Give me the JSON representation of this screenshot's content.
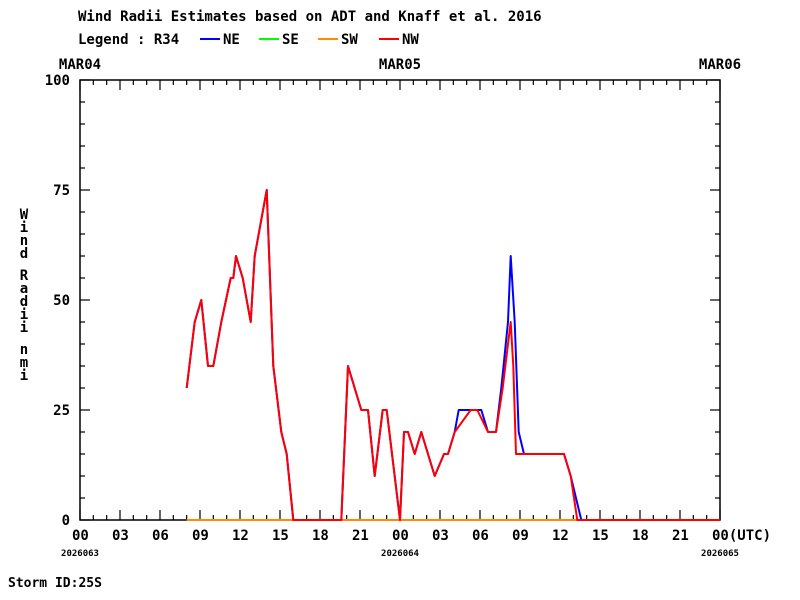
{
  "title": "Wind Radii Estimates based on ADT and Knaff et al. 2016",
  "legend": {
    "prefix": "Legend : R34",
    "items": [
      {
        "name": "NE",
        "color": "#0000ff"
      },
      {
        "name": "SE",
        "color": "#00ff00"
      },
      {
        "name": "SW",
        "color": "#ff8c00"
      },
      {
        "name": "NW",
        "color": "#ff0000"
      }
    ]
  },
  "ylabel": "Wind Radii nmi",
  "storm_id": "Storm ID:25S",
  "chart_data": {
    "type": "line",
    "title": "Wind Radii Estimates based on ADT and Knaff et al. 2016",
    "ylabel": "Wind Radii nmi",
    "xlabel": "(UTC)",
    "xlim": [
      0,
      48
    ],
    "ylim": [
      0,
      100
    ],
    "y_ticks": [
      0,
      25,
      50,
      75,
      100
    ],
    "x_ticks": [
      {
        "t": 0,
        "label": "00"
      },
      {
        "t": 3,
        "label": "03"
      },
      {
        "t": 6,
        "label": "06"
      },
      {
        "t": 9,
        "label": "09"
      },
      {
        "t": 12,
        "label": "12"
      },
      {
        "t": 15,
        "label": "15"
      },
      {
        "t": 18,
        "label": "18"
      },
      {
        "t": 21,
        "label": "21"
      },
      {
        "t": 24,
        "label": "00"
      },
      {
        "t": 27,
        "label": "03"
      },
      {
        "t": 30,
        "label": "06"
      },
      {
        "t": 33,
        "label": "09"
      },
      {
        "t": 36,
        "label": "12"
      },
      {
        "t": 39,
        "label": "15"
      },
      {
        "t": 42,
        "label": "18"
      },
      {
        "t": 45,
        "label": "21"
      },
      {
        "t": 48,
        "label": "00(UTC)"
      }
    ],
    "top_labels": [
      {
        "t": 0,
        "label": "MAR04"
      },
      {
        "t": 24,
        "label": "MAR05"
      },
      {
        "t": 48,
        "label": "MAR06"
      }
    ],
    "date_labels": [
      {
        "t": 0,
        "label": "2026063"
      },
      {
        "t": 24,
        "label": "2026064"
      },
      {
        "t": 48,
        "label": "2026065"
      }
    ],
    "series": [
      {
        "name": "SE",
        "color": "#00ff00",
        "points": [
          [
            8.0,
            0
          ],
          [
            48,
            0
          ]
        ]
      },
      {
        "name": "SW",
        "color": "#ff8c00",
        "points": [
          [
            8.0,
            0
          ],
          [
            48,
            0
          ]
        ]
      },
      {
        "name": "NE",
        "color": "#0000ff",
        "points": [
          [
            8.0,
            30
          ],
          [
            8.6,
            45
          ],
          [
            9.1,
            50
          ],
          [
            9.6,
            35
          ],
          [
            10.0,
            35
          ],
          [
            10.6,
            45
          ],
          [
            11.3,
            55
          ],
          [
            11.5,
            55
          ],
          [
            11.7,
            60
          ],
          [
            12.2,
            55
          ],
          [
            12.8,
            45
          ],
          [
            13.1,
            60
          ],
          [
            13.7,
            70
          ],
          [
            14.0,
            75
          ],
          [
            14.5,
            35
          ],
          [
            15.1,
            20
          ],
          [
            15.5,
            15
          ],
          [
            16.0,
            0
          ],
          [
            19.6,
            0
          ],
          [
            20.1,
            35
          ],
          [
            21.1,
            25
          ],
          [
            21.6,
            25
          ],
          [
            22.1,
            10
          ],
          [
            22.7,
            25
          ],
          [
            23.0,
            25
          ],
          [
            24.0,
            0
          ],
          [
            24.3,
            20
          ],
          [
            24.6,
            20
          ],
          [
            25.1,
            15
          ],
          [
            25.6,
            20
          ],
          [
            26.6,
            10
          ],
          [
            27.3,
            15
          ],
          [
            27.6,
            15
          ],
          [
            28.1,
            20
          ],
          [
            28.4,
            25
          ],
          [
            29.3,
            25
          ],
          [
            30.1,
            25
          ],
          [
            30.6,
            20
          ],
          [
            31.2,
            20
          ],
          [
            31.6,
            30
          ],
          [
            32.1,
            45
          ],
          [
            32.3,
            60
          ],
          [
            32.6,
            45
          ],
          [
            32.9,
            20
          ],
          [
            33.3,
            15
          ],
          [
            36.3,
            15
          ],
          [
            36.8,
            10
          ],
          [
            37.6,
            0
          ],
          [
            48,
            0
          ]
        ]
      },
      {
        "name": "NW",
        "color": "#ff0000",
        "points": [
          [
            8.0,
            30
          ],
          [
            8.6,
            45
          ],
          [
            9.1,
            50
          ],
          [
            9.6,
            35
          ],
          [
            10.0,
            35
          ],
          [
            10.6,
            45
          ],
          [
            11.3,
            55
          ],
          [
            11.5,
            55
          ],
          [
            11.7,
            60
          ],
          [
            12.2,
            55
          ],
          [
            12.8,
            45
          ],
          [
            13.1,
            60
          ],
          [
            13.7,
            70
          ],
          [
            14.0,
            75
          ],
          [
            14.5,
            35
          ],
          [
            15.1,
            20
          ],
          [
            15.5,
            15
          ],
          [
            16.0,
            0
          ],
          [
            19.6,
            0
          ],
          [
            20.1,
            35
          ],
          [
            21.1,
            25
          ],
          [
            21.6,
            25
          ],
          [
            22.1,
            10
          ],
          [
            22.7,
            25
          ],
          [
            23.0,
            25
          ],
          [
            24.0,
            0
          ],
          [
            24.3,
            20
          ],
          [
            24.6,
            20
          ],
          [
            25.1,
            15
          ],
          [
            25.6,
            20
          ],
          [
            26.6,
            10
          ],
          [
            27.3,
            15
          ],
          [
            27.6,
            15
          ],
          [
            28.1,
            20
          ],
          [
            29.3,
            25
          ],
          [
            29.8,
            25
          ],
          [
            30.6,
            20
          ],
          [
            31.2,
            20
          ],
          [
            31.7,
            30
          ],
          [
            32.1,
            40
          ],
          [
            32.3,
            45
          ],
          [
            32.5,
            35
          ],
          [
            32.7,
            15
          ],
          [
            33.3,
            15
          ],
          [
            36.3,
            15
          ],
          [
            36.8,
            10
          ],
          [
            37.3,
            0
          ],
          [
            48,
            0
          ]
        ]
      }
    ]
  }
}
